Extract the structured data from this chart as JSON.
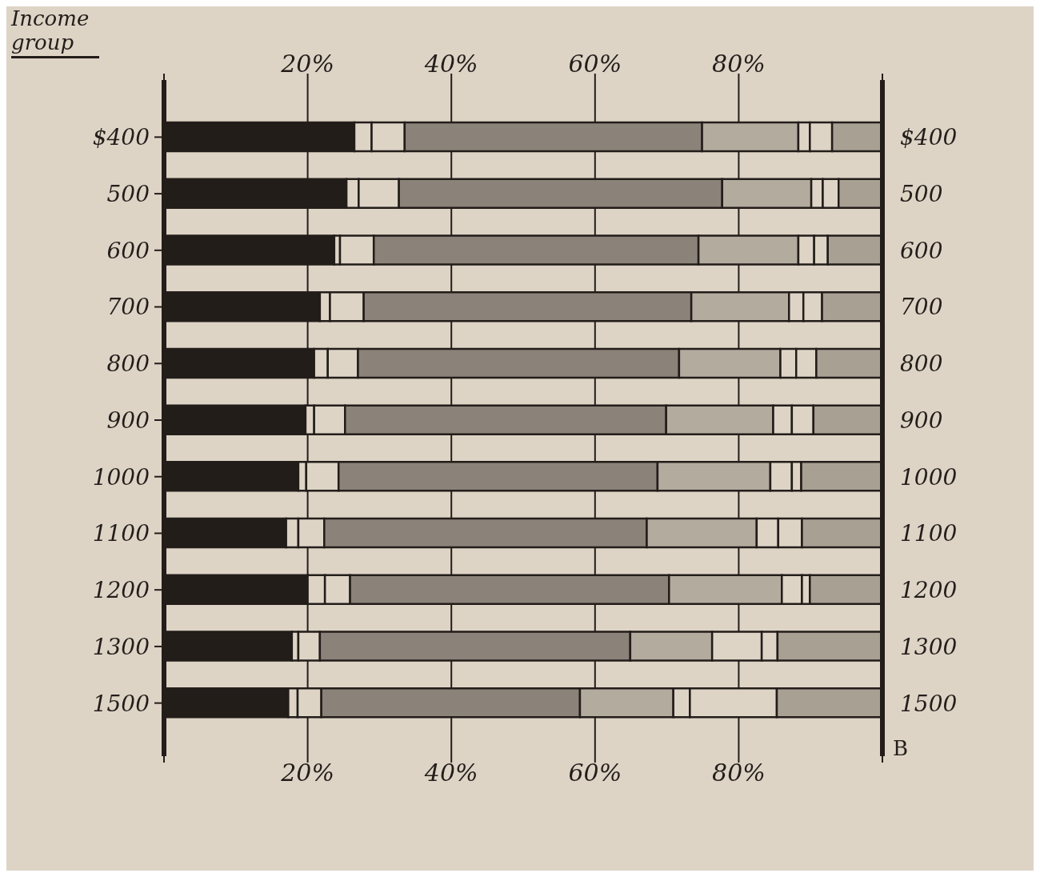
{
  "chart_data": {
    "type": "bar",
    "orientation": "horizontal",
    "stacked": true,
    "ylabel": "Income group",
    "categories": [
      "$400",
      "500",
      "600",
      "700",
      "800",
      "900",
      "1000",
      "1100",
      "1200",
      "1300",
      "1500"
    ],
    "series": [
      {
        "color": "#231d1a",
        "values": [
          26.5,
          25.4,
          23.7,
          21.7,
          20.9,
          19.7,
          18.7,
          17.0,
          20.0,
          17.8,
          17.3
        ]
      },
      {
        "color": "#ddd4c6",
        "values": [
          2.4,
          1.7,
          0.8,
          1.4,
          1.9,
          1.2,
          1.1,
          1.7,
          2.4,
          0.9,
          1.3
        ]
      },
      {
        "color": "#ddd4c6",
        "values": [
          4.6,
          5.6,
          4.7,
          4.7,
          4.2,
          4.3,
          4.5,
          3.6,
          3.5,
          3.0,
          3.3
        ]
      },
      {
        "color": "#8b8279",
        "values": [
          41.4,
          45.0,
          45.2,
          45.6,
          44.7,
          44.7,
          44.4,
          44.9,
          44.4,
          43.2,
          36.0
        ]
      },
      {
        "color": "#b4ab9f",
        "values": [
          13.4,
          12.4,
          13.9,
          13.6,
          14.1,
          14.9,
          15.7,
          15.3,
          15.7,
          11.4,
          13.0
        ]
      },
      {
        "color": "#ddd4c6",
        "values": [
          1.6,
          1.6,
          2.2,
          2.0,
          2.2,
          2.6,
          3.0,
          3.0,
          2.8,
          6.9,
          2.3
        ]
      },
      {
        "color": "#ddd4c6",
        "values": [
          3.1,
          2.2,
          1.9,
          2.6,
          2.8,
          3.0,
          1.3,
          3.3,
          1.1,
          2.2,
          12.1
        ]
      },
      {
        "color": "#a9a094",
        "values": [
          7.0,
          6.1,
          7.6,
          8.4,
          9.2,
          9.6,
          11.3,
          11.2,
          10.1,
          14.6,
          14.7
        ]
      }
    ],
    "xlim": [
      0,
      100
    ],
    "xticks": [
      {
        "value": 0,
        "label": null
      },
      {
        "value": 20,
        "label": "20%"
      },
      {
        "value": 40,
        "label": "40%"
      },
      {
        "value": 60,
        "label": "60%"
      },
      {
        "value": 80,
        "label": "80%"
      },
      {
        "value": 100,
        "label": null
      }
    ],
    "x2lim": [
      0,
      100
    ],
    "x2ticks": [
      {
        "value": 0,
        "label": null
      },
      {
        "value": 20,
        "label": "20%"
      },
      {
        "value": 40,
        "label": "40%"
      },
      {
        "value": 60,
        "label": "60%"
      },
      {
        "value": 80,
        "label": "80%"
      },
      {
        "value": 100,
        "label": null
      }
    ],
    "grid": "x",
    "annotations": [
      "B"
    ]
  }
}
